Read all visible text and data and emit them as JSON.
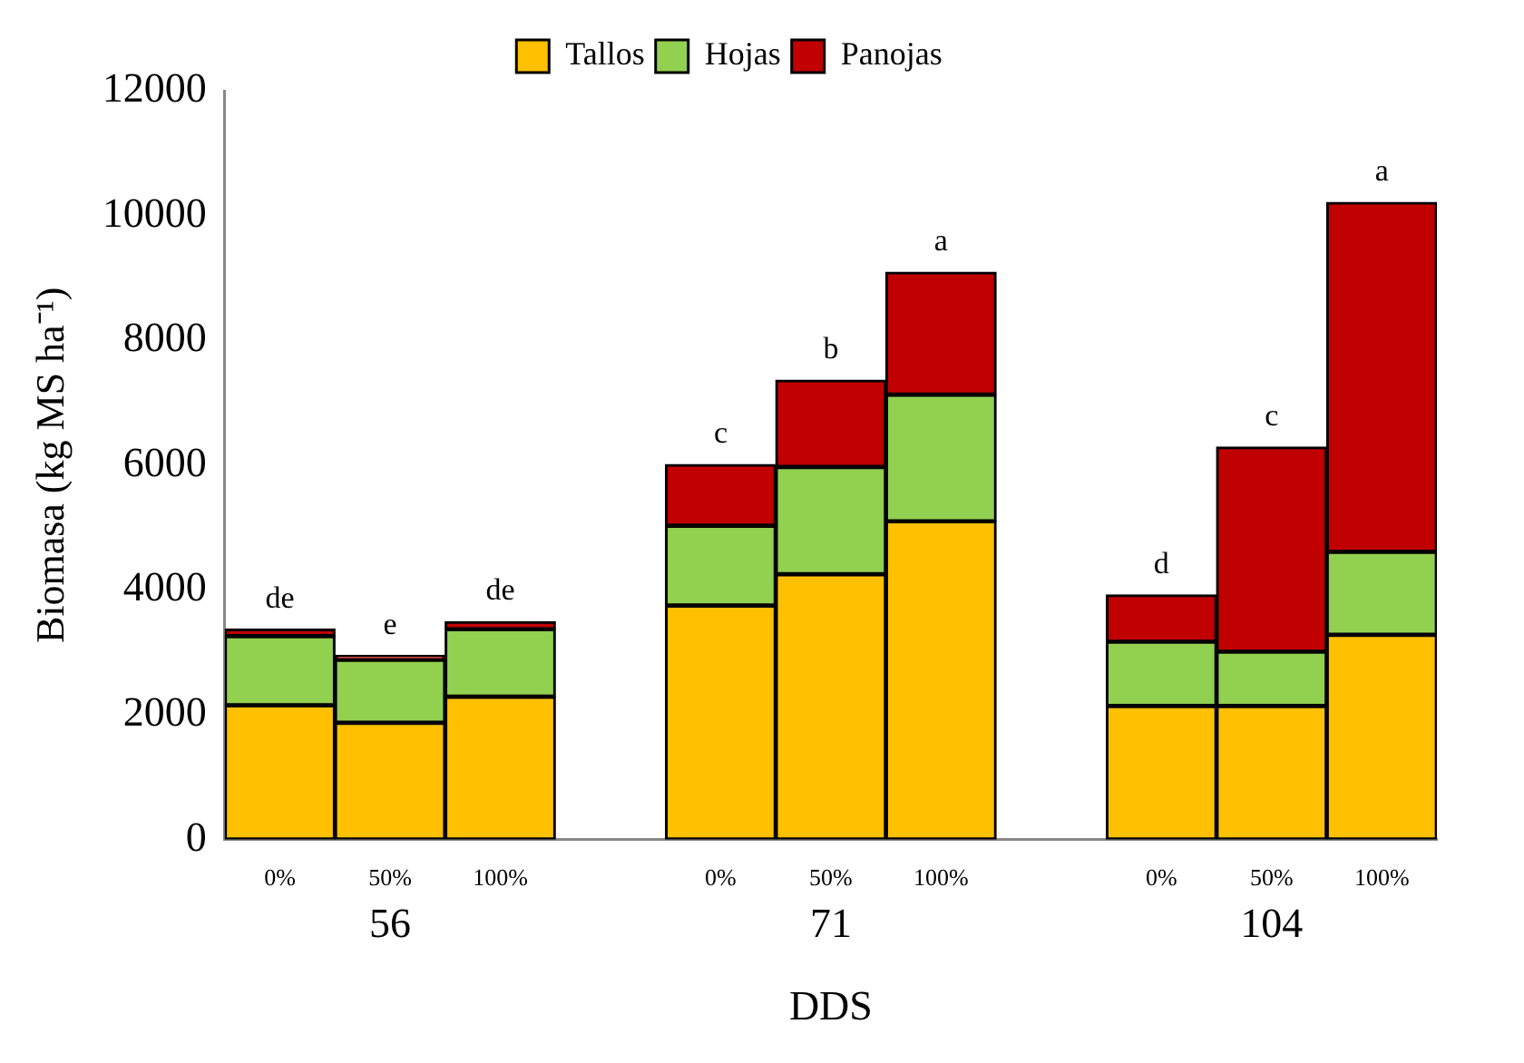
{
  "chart_data": {
    "type": "bar",
    "stacked": true,
    "xlabel": "DDS",
    "ylabel": "Biomasa (kg MS ha⁻¹)",
    "categories": [
      "0%",
      "50%",
      "100%",
      null,
      "0%",
      "50%",
      "100%",
      null,
      "0%",
      "50%",
      "100%"
    ],
    "series": [
      {
        "name": "Tallos",
        "color": "#ffc000",
        "values": [
          2150,
          1870,
          2290,
          null,
          3750,
          4250,
          5100,
          null,
          2140,
          2140,
          3280
        ]
      },
      {
        "name": "Hojas",
        "color": "#92d050",
        "values": [
          1110,
          1010,
          1080,
          null,
          1280,
          1720,
          2030,
          null,
          1030,
          870,
          1330
        ]
      },
      {
        "name": "Panojas",
        "color": "#c00000",
        "values": [
          110,
          70,
          120,
          null,
          980,
          1390,
          1960,
          null,
          750,
          3280,
          5600
        ]
      }
    ],
    "totals": [
      "de",
      "e",
      "de",
      null,
      "c",
      "b",
      "a",
      null,
      "d",
      "c",
      "a"
    ],
    "annotations": [
      "56",
      "71",
      "104"
    ],
    "ylim": [
      0,
      12000
    ],
    "yticks": [
      0,
      2000,
      4000,
      6000,
      8000,
      10000,
      12000
    ],
    "legend": "top",
    "grid": false
  }
}
